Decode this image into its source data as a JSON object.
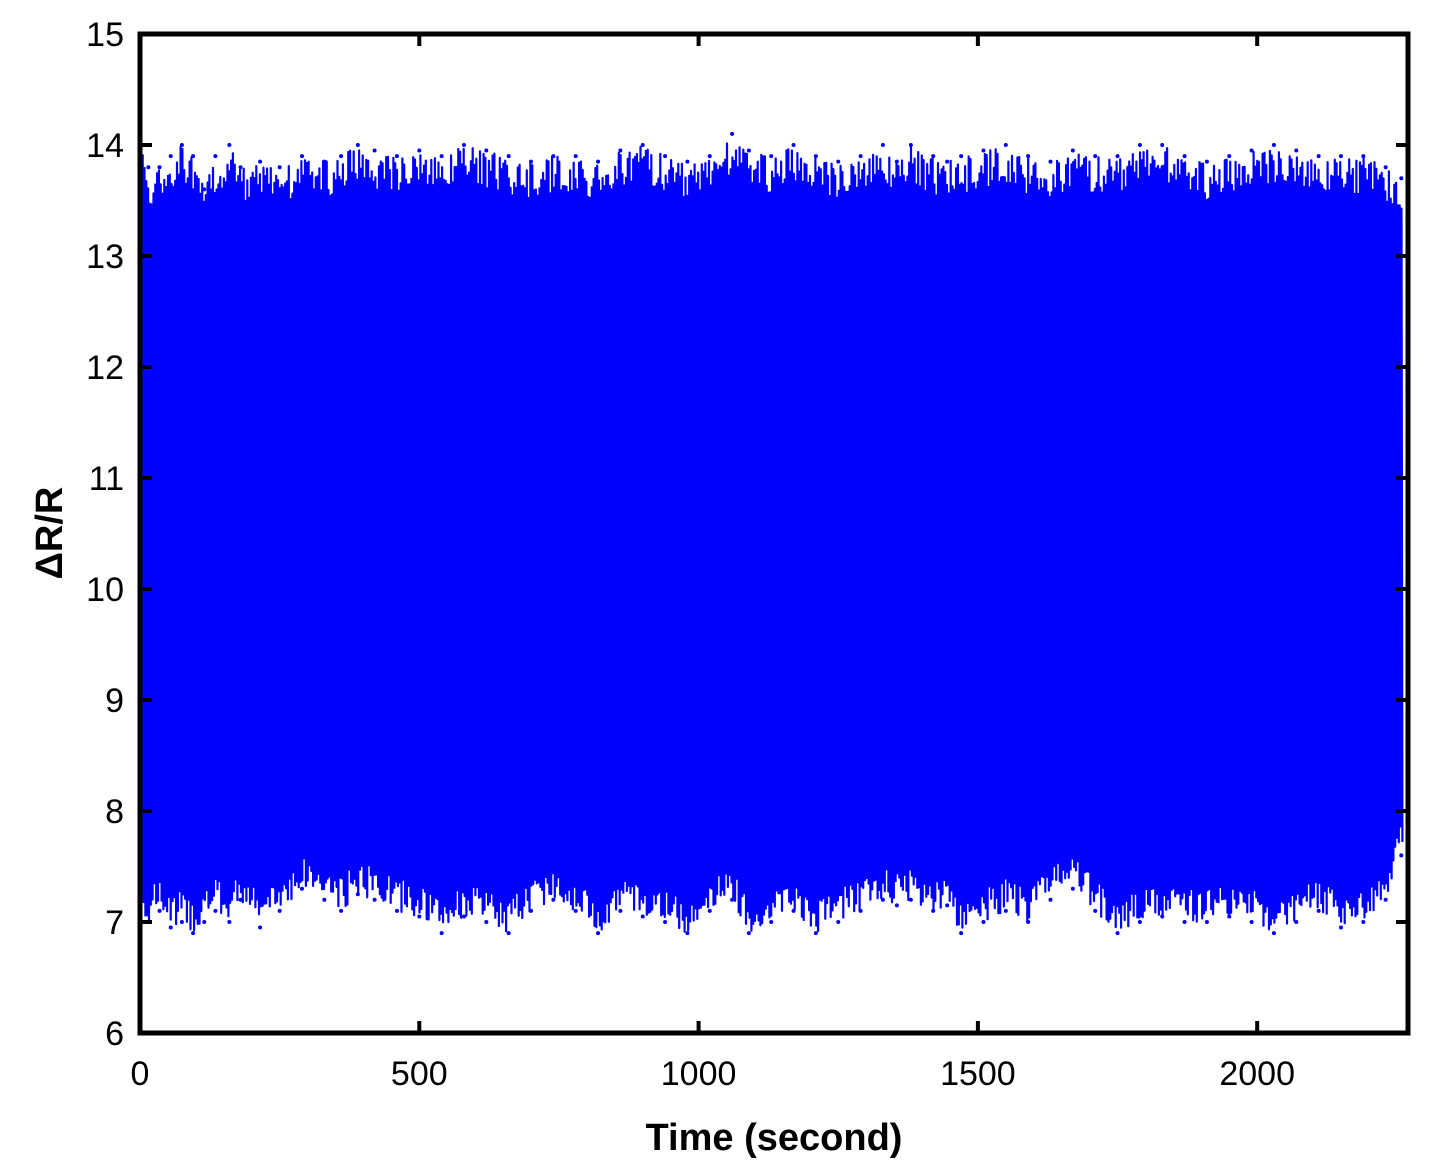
{
  "chart_data": {
    "type": "line",
    "xlabel": "Time (second)",
    "ylabel": "ΔR/R",
    "xlim": [
      0,
      2270
    ],
    "ylim": [
      6,
      15
    ],
    "xticks": [
      0,
      500,
      1000,
      1500,
      2000
    ],
    "yticks": [
      6,
      7,
      8,
      9,
      10,
      11,
      12,
      13,
      14,
      15
    ],
    "grid": false,
    "legend": "none",
    "line_color": "#0000ff",
    "signal": {
      "description_of_shape": "dense cyclic oscillation",
      "t_start": 0,
      "t_end": 2260,
      "cycle_count": 2260,
      "approx_max": 14.1,
      "approx_min": 6.88,
      "typical_peak_range": [
        13.2,
        14.0
      ],
      "typical_trough_range": [
        6.9,
        7.5
      ]
    },
    "series": [
      {
        "x": [
          0,
          15,
          35,
          55,
          75,
          95,
          115,
          135,
          160,
          180,
          215,
          250,
          290,
          330,
          360,
          390,
          420,
          460,
          500,
          540,
          580,
          620,
          660,
          700,
          740,
          780,
          820,
          860,
          900,
          940,
          980,
          1020,
          1060,
          1090,
          1130,
          1170,
          1210,
          1250,
          1290,
          1330,
          1355,
          1380,
          1420,
          1445,
          1470,
          1510,
          1550,
          1590,
          1630,
          1670,
          1710,
          1750,
          1790,
          1830,
          1870,
          1910,
          1950,
          1990,
          2030,
          2070,
          2110,
          2150,
          2190,
          2230,
          2258
        ],
        "peak": [
          14.0,
          13.8,
          13.8,
          13.9,
          14.0,
          13.9,
          13.6,
          13.9,
          14.0,
          13.8,
          13.85,
          13.8,
          13.9,
          13.85,
          13.9,
          14.0,
          13.95,
          13.9,
          13.95,
          13.9,
          14.0,
          13.95,
          13.9,
          13.85,
          13.9,
          13.9,
          13.85,
          13.95,
          14.0,
          13.9,
          13.85,
          13.9,
          14.1,
          13.95,
          13.9,
          14.0,
          13.9,
          13.85,
          13.9,
          14.0,
          13.85,
          14.0,
          13.9,
          13.85,
          13.9,
          13.95,
          14.0,
          13.9,
          13.85,
          13.95,
          13.9,
          13.9,
          14.0,
          14.0,
          13.9,
          13.85,
          13.9,
          13.95,
          14.0,
          13.95,
          13.9,
          13.9,
          13.9,
          13.8,
          13.7
        ],
        "trough": [
          7.1,
          7.0,
          7.1,
          6.95,
          7.0,
          6.9,
          7.0,
          7.1,
          7.0,
          7.2,
          6.95,
          7.1,
          7.3,
          7.2,
          7.1,
          7.25,
          7.2,
          7.1,
          7.05,
          6.9,
          7.05,
          7.0,
          6.9,
          7.1,
          7.2,
          7.1,
          6.9,
          7.1,
          7.05,
          7.0,
          6.9,
          7.1,
          7.2,
          6.9,
          7.0,
          7.1,
          6.9,
          7.0,
          7.1,
          7.2,
          7.15,
          7.2,
          7.1,
          7.15,
          6.9,
          7.0,
          7.1,
          7.0,
          7.2,
          7.3,
          7.1,
          6.9,
          7.0,
          7.05,
          7.0,
          7.0,
          7.05,
          7.0,
          6.9,
          7.0,
          7.1,
          6.95,
          7.0,
          7.2,
          7.6
        ]
      }
    ]
  }
}
